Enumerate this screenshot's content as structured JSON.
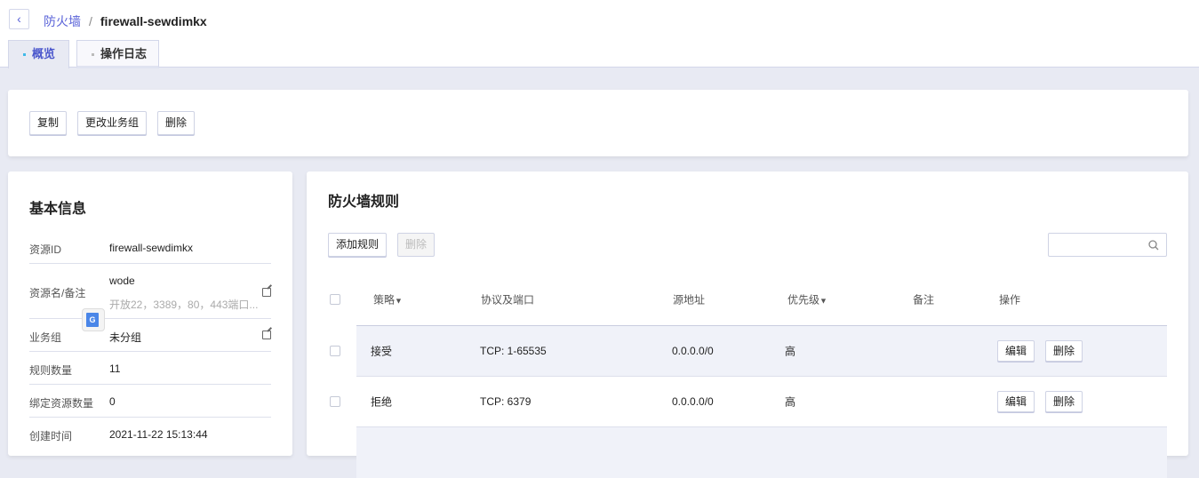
{
  "breadcrumb": {
    "parent": "防火墙",
    "separator": "/",
    "current": "firewall-sewdimkx"
  },
  "tabs": [
    {
      "label": "概览",
      "active": true
    },
    {
      "label": "操作日志",
      "active": false
    }
  ],
  "actions": {
    "copy": "复制",
    "change_group": "更改业务组",
    "delete": "删除"
  },
  "basic_info": {
    "title": "基本信息",
    "rows": [
      {
        "label": "资源ID",
        "value": "firewall-sewdimkx"
      },
      {
        "label": "资源名/备注",
        "value": "wode",
        "note": "开放22，3389，80，443端口..."
      },
      {
        "label": "业务组",
        "value": "未分组"
      },
      {
        "label": "规则数量",
        "value": "11"
      },
      {
        "label": "绑定资源数量",
        "value": "0"
      },
      {
        "label": "创建时间",
        "value": "2021-11-22 15:13:44"
      }
    ]
  },
  "rules": {
    "title": "防火墙规则",
    "add_label": "添加规则",
    "delete_label": "删除",
    "search_placeholder": "",
    "columns": [
      "策略",
      "协议及端口",
      "源地址",
      "优先级",
      "备注",
      "操作"
    ],
    "rows": [
      {
        "policy": "接受",
        "protocol": "TCP: 1-65535",
        "source": "0.0.0.0/0",
        "priority": "高",
        "remark": "",
        "edit": "编辑",
        "delete": "删除"
      },
      {
        "policy": "拒绝",
        "protocol": "TCP: 6379",
        "source": "0.0.0.0/0",
        "priority": "高",
        "remark": "",
        "edit": "编辑",
        "delete": "删除"
      }
    ]
  },
  "colors": {
    "accent": "#5a63d8",
    "page_bg": "#e8eaf3",
    "row_highlight": "#f0f2f9"
  }
}
